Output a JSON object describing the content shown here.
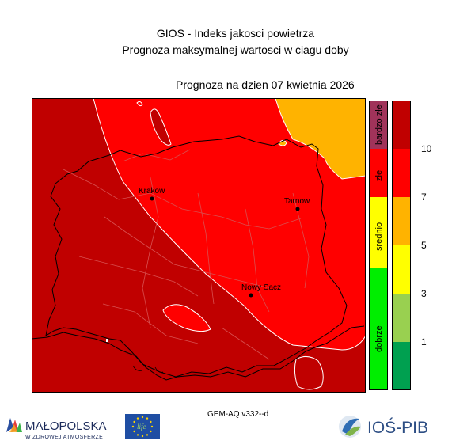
{
  "header": {
    "title_line1": "GIOS - Indeks jakosci powietrza",
    "title_line2": "Prognoza maksymalnej wartosci w ciagu doby",
    "forecast_date": "Prognoza na dzien  07 kwietnia 2026"
  },
  "map": {
    "cities": [
      {
        "name": "Krakow"
      },
      {
        "name": "Tarnow"
      },
      {
        "name": "Nowy Sacz"
      }
    ]
  },
  "categories": [
    {
      "label": "bardzo złe",
      "color": "#a0335a"
    },
    {
      "label": "złe",
      "color": "#ff0000"
    },
    {
      "label": "srednio",
      "color": "#ffff00"
    },
    {
      "label": "dobrze",
      "color": "#00ee00"
    }
  ],
  "scale": {
    "colors": [
      "#c00000",
      "#ff0000",
      "#ffb300",
      "#ffff00",
      "#99d050",
      "#00a050"
    ],
    "ticks": [
      "10",
      "7",
      "5",
      "3",
      "1"
    ]
  },
  "footer": {
    "model": "GEM-AQ v332--d",
    "malopolska_name": "MAŁOPOLSKA",
    "malopolska_slogan": "W ZDROWEJ ATMOSFERZE",
    "eu_mark": "life",
    "ios_name": "IOŚ-PIB"
  }
}
